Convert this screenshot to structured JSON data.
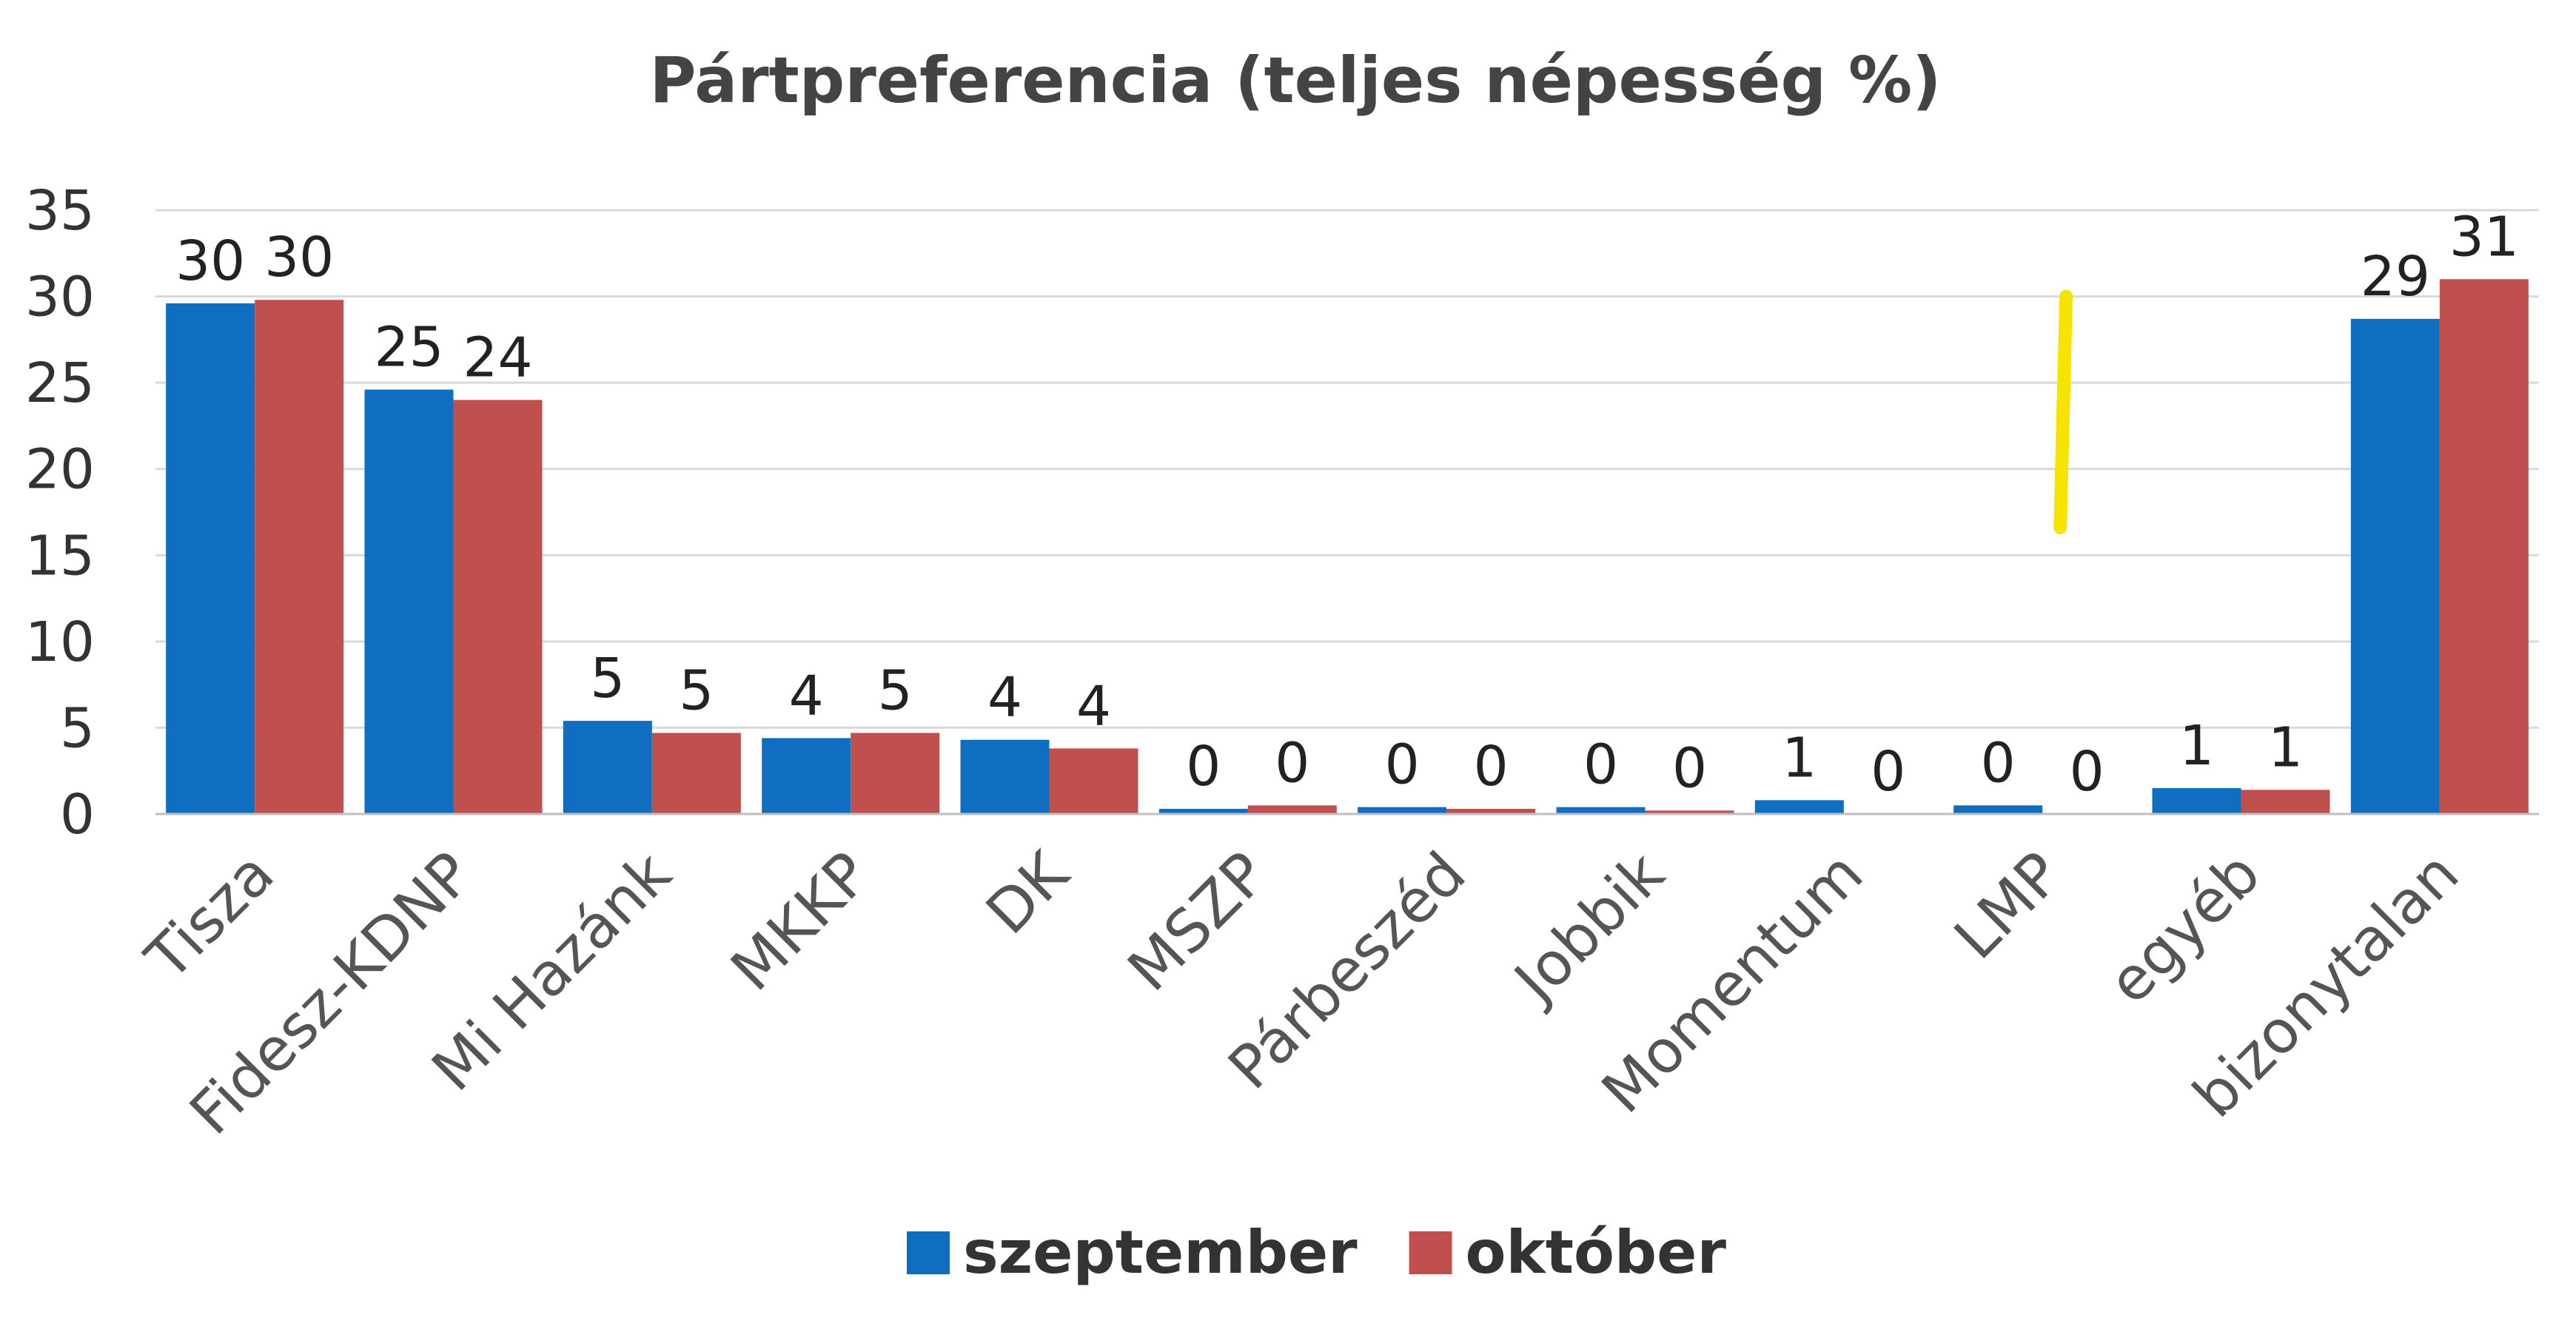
{
  "chart_data": {
    "type": "bar",
    "title": "Pártpreferencia (teljes népesség %)",
    "categories": [
      "Tisza",
      "Fidesz-KDNP",
      "Mi Hazánk",
      "MKKP",
      "DK",
      "MSZP",
      "Párbeszéd",
      "Jobbik",
      "Momentum",
      "LMP",
      "egyéb",
      "bizonytalan"
    ],
    "series": [
      {
        "name": "szeptember",
        "color": "#0f6ec0",
        "values": [
          29.6,
          24.6,
          5.4,
          4.4,
          4.3,
          0.3,
          0.4,
          0.4,
          0.8,
          0.5,
          1.5,
          28.7
        ],
        "labels": [
          "30",
          "25",
          "5",
          "4",
          "4",
          "0",
          "0",
          "0",
          "1",
          "0",
          "1",
          "29"
        ]
      },
      {
        "name": "október",
        "color": "#c0504d",
        "values": [
          29.8,
          24.0,
          4.7,
          4.7,
          3.8,
          0.5,
          0.3,
          0.2,
          0.0,
          0.0,
          1.4,
          31.0
        ],
        "labels": [
          "30",
          "24",
          "5",
          "5",
          "4",
          "0",
          "0",
          "0",
          "0",
          "0",
          "1",
          "31"
        ]
      }
    ],
    "ylim": [
      0,
      35
    ],
    "yticks": [
      0,
      5,
      10,
      15,
      20,
      25,
      30,
      35
    ],
    "grid": true,
    "legend_position": "bottom",
    "annotation_color": "#f5e400"
  }
}
